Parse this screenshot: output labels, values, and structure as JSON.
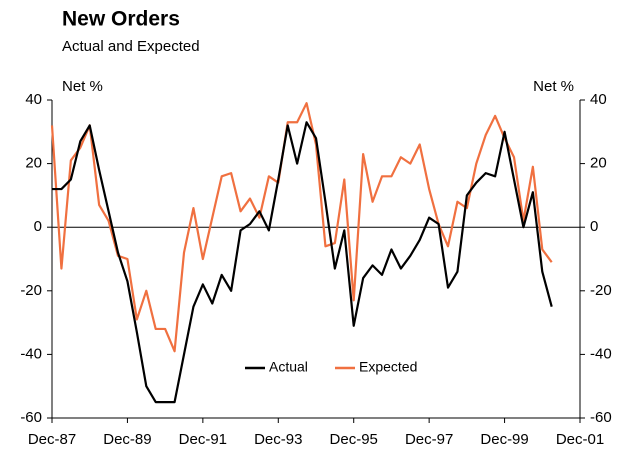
{
  "chart_data": {
    "type": "line",
    "title": "New Orders",
    "subtitle": "Actual and Expected",
    "y_label": "Net %",
    "y2_label": "Net %",
    "categories": [
      "Dec-87",
      null,
      null,
      null,
      null,
      null,
      null,
      null,
      "Dec-89",
      null,
      null,
      null,
      null,
      null,
      null,
      null,
      "Dec-91",
      null,
      null,
      null,
      null,
      null,
      null,
      null,
      "Dec-93",
      null,
      null,
      null,
      null,
      null,
      null,
      null,
      "Dec-95",
      null,
      null,
      null,
      null,
      null,
      null,
      null,
      "Dec-97",
      null,
      null,
      null,
      null,
      null,
      null,
      null,
      "Dec-99",
      null,
      null,
      null,
      null,
      null,
      null,
      null,
      "Dec-01"
    ],
    "series": [
      {
        "name": "Actual",
        "color": "#000000",
        "values": [
          12,
          12,
          15,
          27,
          32,
          18,
          5,
          -8,
          -17,
          -33,
          -50,
          -55,
          -55,
          -55,
          -40,
          -25,
          -18,
          -24,
          -15,
          -20,
          -1,
          1,
          5,
          -1,
          15,
          32,
          20,
          33,
          28,
          8,
          -13,
          -1,
          -31,
          -16,
          -12,
          -15,
          -7,
          -13,
          -9,
          -4,
          3,
          1,
          -19,
          -14,
          10,
          14,
          17,
          16,
          30,
          15,
          0,
          11,
          -14,
          -25,
          null,
          null,
          null
        ]
      },
      {
        "name": "Expected",
        "color": "#f07040",
        "values": [
          32,
          -13,
          21,
          25,
          32,
          7,
          2,
          -9,
          -10,
          -29,
          -20,
          -32,
          -32,
          -39,
          -8,
          6,
          -10,
          3,
          16,
          17,
          5,
          9,
          3,
          16,
          14,
          33,
          33,
          39,
          26,
          -6,
          -5,
          15,
          -23,
          23,
          8,
          16,
          16,
          22,
          20,
          26,
          12,
          1,
          -6,
          8,
          6,
          20,
          29,
          35,
          28,
          22,
          2,
          19,
          -7,
          -11,
          null,
          null,
          null
        ]
      }
    ],
    "ylim": [
      -60,
      40
    ],
    "yticks": [
      -60,
      -40,
      -20,
      0,
      20,
      40
    ],
    "y2lim": [
      -60,
      40
    ],
    "y2ticks": [
      -60,
      -40,
      -20,
      0,
      20,
      40
    ],
    "legend": "bottom-center"
  }
}
